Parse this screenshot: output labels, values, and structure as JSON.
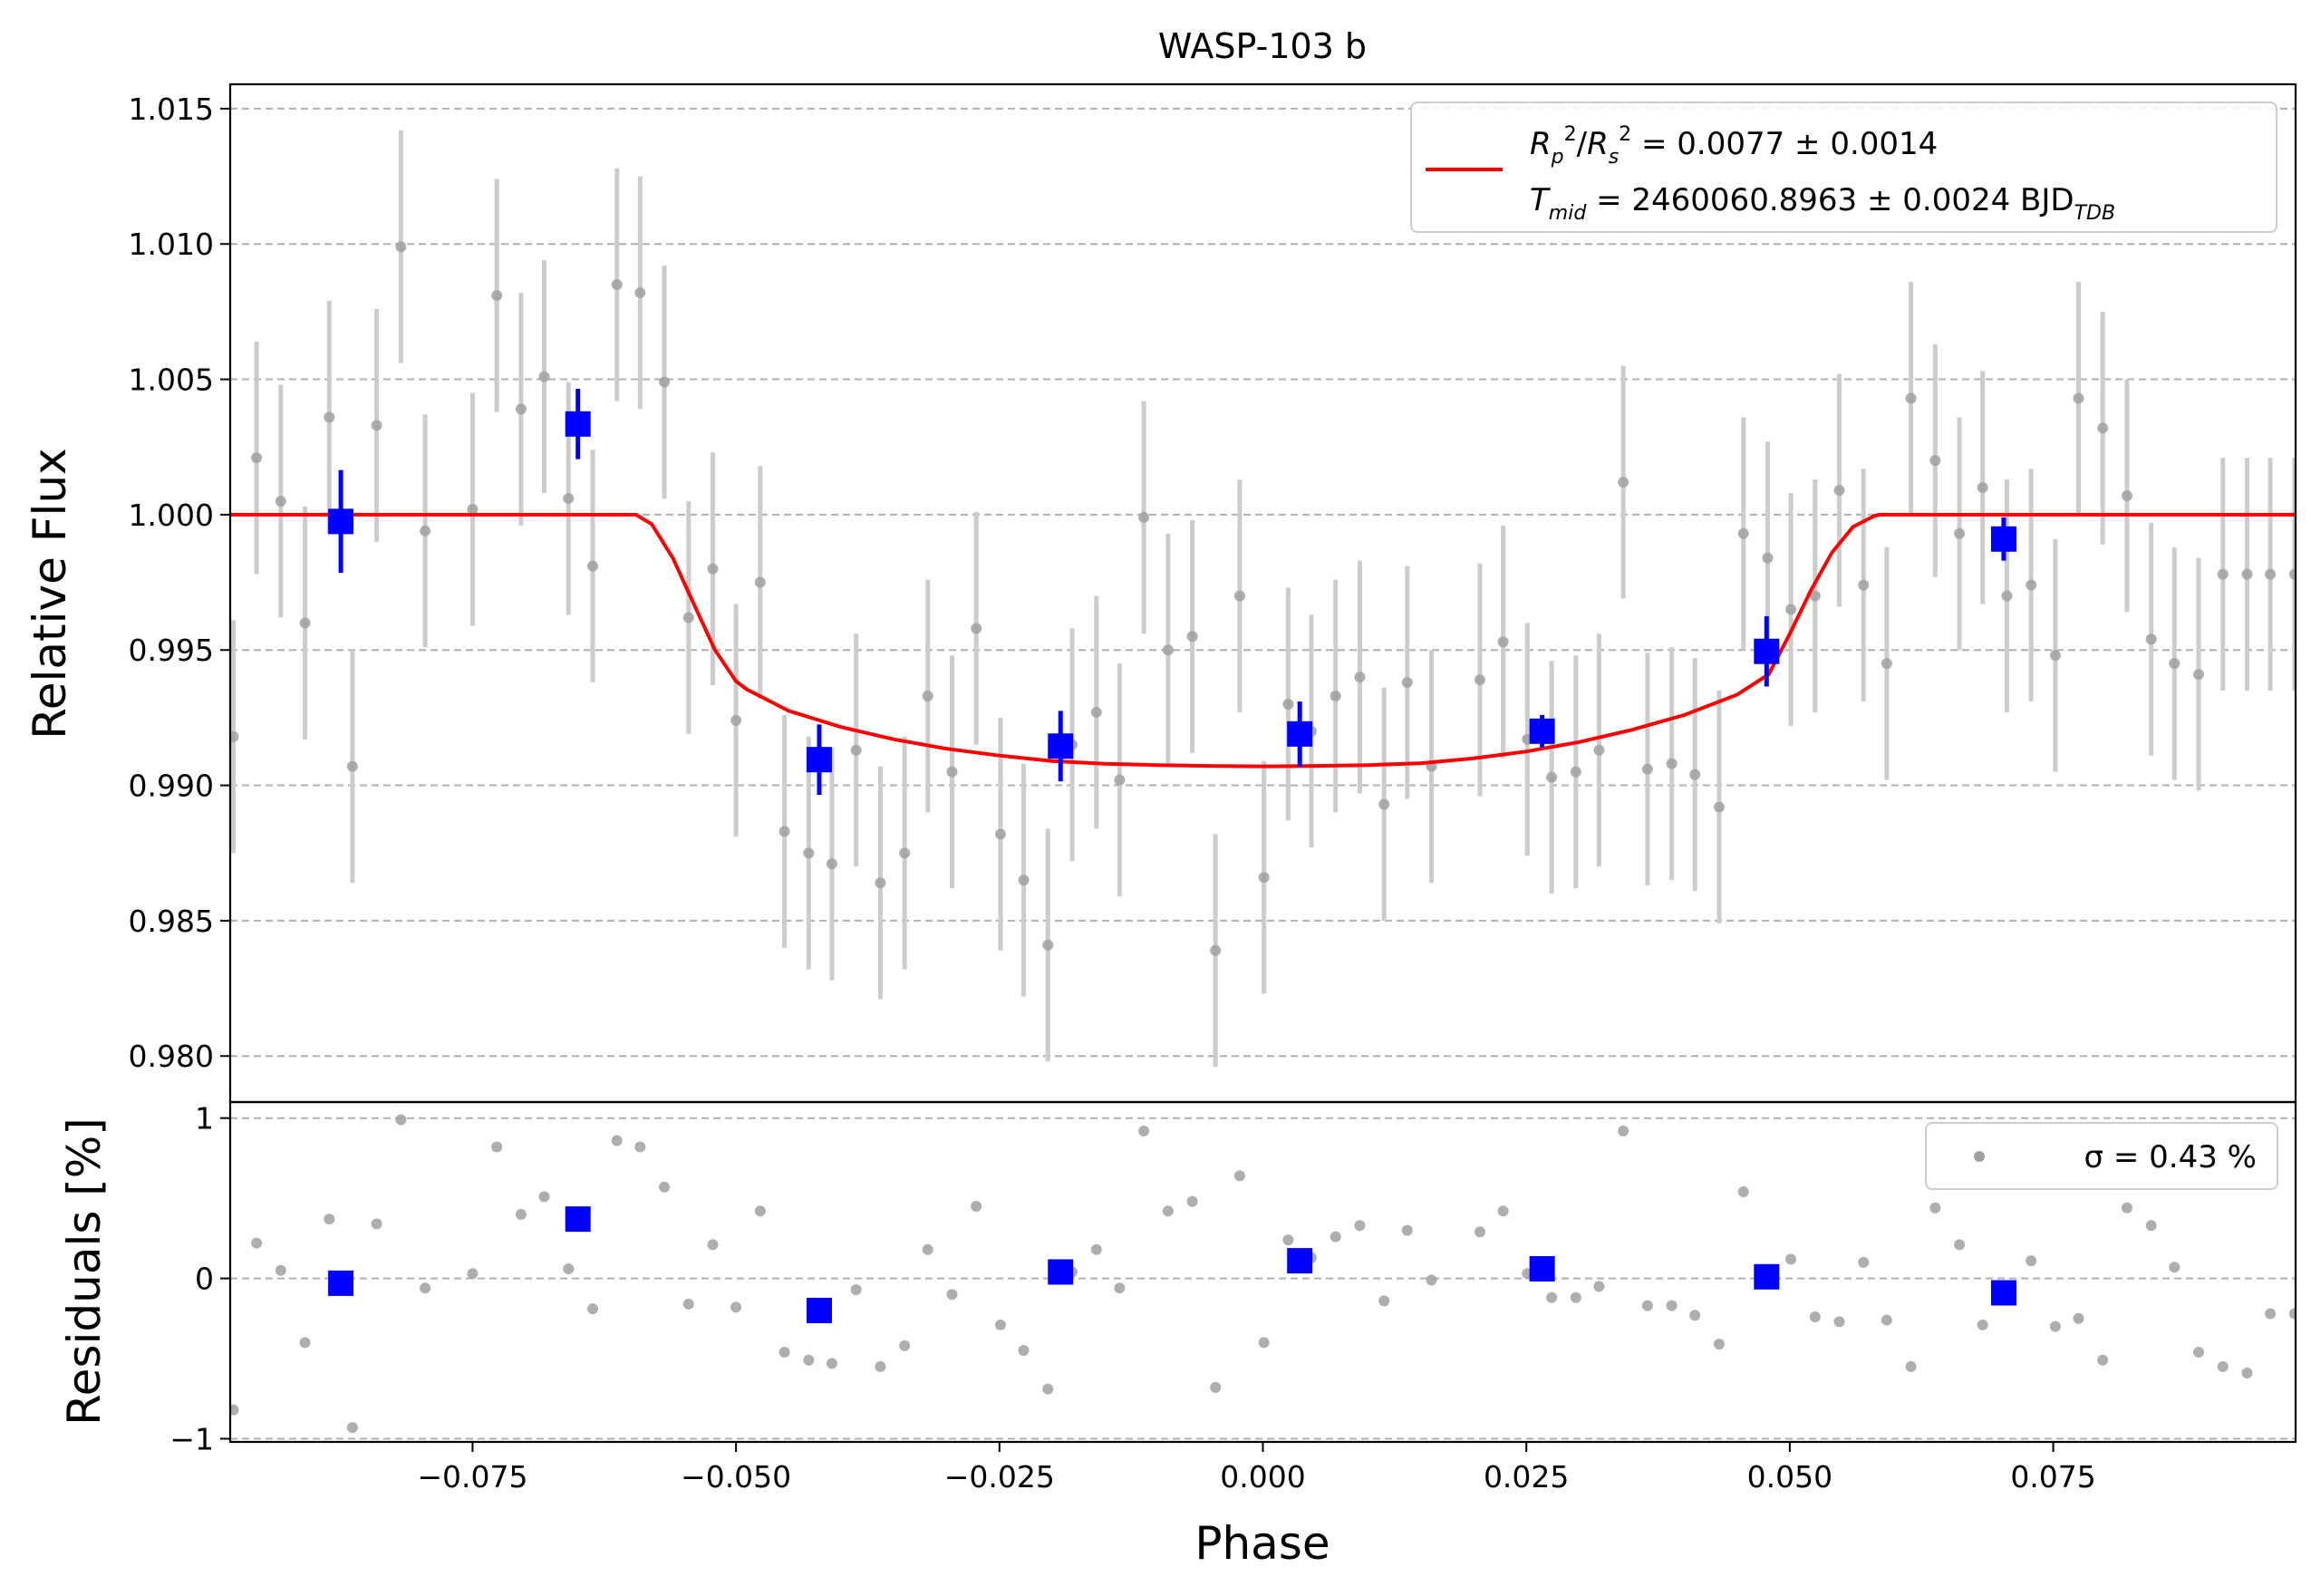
{
  "chart_data": [
    {
      "type": "scatter",
      "title": "WASP-103 b",
      "ylabel": "Relative Flux",
      "xlim": [
        -0.098,
        0.098
      ],
      "ylim": [
        0.9783,
        1.0159
      ],
      "yticks": [
        0.98,
        0.985,
        0.99,
        0.995,
        1.0,
        1.005,
        1.01,
        1.015
      ],
      "ytick_labels": [
        "0.980",
        "0.985",
        "0.990",
        "0.995",
        "1.000",
        "1.005",
        "1.010",
        "1.015"
      ],
      "grid": "y, dashed",
      "legend": {
        "placement": "upper-right",
        "line1": "R_p^2/R_s^2 = 0.0077 ± 0.0014",
        "line2": "T_mid = 2460060.8963 ± 0.0024 BJD_TDB"
      },
      "colors": {
        "raw": "#a0a0a0",
        "raw_err": "#cccccc",
        "binned": "#0000ff",
        "model": "#ff0000"
      },
      "model": {
        "name": "transit model",
        "x": [
          -0.098,
          -0.0595,
          -0.058,
          -0.056,
          -0.054,
          -0.052,
          -0.05,
          -0.049,
          -0.045,
          -0.04,
          -0.035,
          -0.03,
          -0.025,
          -0.02,
          -0.015,
          -0.01,
          -0.005,
          0.0,
          0.005,
          0.01,
          0.015,
          0.02,
          0.025,
          0.03,
          0.035,
          0.04,
          0.045,
          0.048,
          0.05,
          0.052,
          0.054,
          0.056,
          0.058,
          0.0585,
          0.098
        ],
        "y": [
          1.0,
          1.0,
          0.99965,
          0.9984,
          0.9967,
          0.995,
          0.99385,
          0.99355,
          0.99275,
          0.99215,
          0.9917,
          0.99135,
          0.9911,
          0.9909,
          0.9908,
          0.99075,
          0.99072,
          0.9907,
          0.99072,
          0.99075,
          0.99082,
          0.991,
          0.99125,
          0.9916,
          0.99205,
          0.9926,
          0.99335,
          0.9941,
          0.9956,
          0.9972,
          0.9986,
          0.99955,
          0.99995,
          1.0,
          1.0
        ]
      },
      "raw_points": {
        "x": [
          -0.0977,
          -0.0955,
          -0.0932,
          -0.0909,
          -0.0886,
          -0.0864,
          -0.0841,
          -0.0818,
          -0.0795,
          -0.075,
          -0.0727,
          -0.0704,
          -0.0682,
          -0.0659,
          -0.0636,
          -0.0613,
          -0.0591,
          -0.0568,
          -0.0545,
          -0.0522,
          -0.05,
          -0.0477,
          -0.0454,
          -0.0431,
          -0.0409,
          -0.0386,
          -0.0363,
          -0.034,
          -0.0318,
          -0.0295,
          -0.0272,
          -0.0249,
          -0.0227,
          -0.0204,
          -0.0181,
          -0.0158,
          -0.0136,
          -0.0113,
          -0.009,
          -0.0067,
          -0.0045,
          -0.0022,
          0.0001,
          0.0024,
          0.0046,
          0.0069,
          0.0092,
          0.0115,
          0.0137,
          0.016,
          0.0206,
          0.0228,
          0.0251,
          0.0274,
          0.0297,
          0.0319,
          0.0342,
          0.0365,
          0.0388,
          0.041,
          0.0433,
          0.0456,
          0.0479,
          0.0501,
          0.0524,
          0.0547,
          0.057,
          0.0592,
          0.0615,
          0.0638,
          0.0661,
          0.0683,
          0.0706,
          0.0729,
          0.0752,
          0.0774,
          0.0797,
          0.082,
          0.0843,
          0.0865,
          0.0888,
          0.0911,
          0.0934,
          0.0956,
          0.0979
        ],
        "y": [
          0.9918,
          1.0021,
          1.0005,
          0.996,
          1.0036,
          0.9907,
          1.0033,
          1.0099,
          0.9994,
          1.0002,
          1.0081,
          1.0039,
          1.0051,
          1.0006,
          0.9981,
          1.0085,
          1.0082,
          1.0049,
          0.9962,
          0.998,
          0.9924,
          0.9975,
          0.9883,
          0.9875,
          0.9871,
          0.9913,
          0.9864,
          0.9875,
          0.9933,
          0.9905,
          0.9958,
          0.9882,
          0.9865,
          0.9841,
          0.9915,
          0.9927,
          0.9902,
          0.9999,
          0.995,
          0.9955,
          0.9839,
          0.997,
          0.9866,
          0.993,
          0.992,
          0.9933,
          0.994,
          0.9893,
          0.9938,
          0.9907,
          0.9939,
          0.9953,
          0.9917,
          0.9903,
          0.9905,
          0.9913,
          1.0012,
          0.9906,
          0.9908,
          0.9904,
          0.9892,
          0.9993,
          0.9984,
          0.9965,
          0.997,
          1.0009,
          0.9974,
          0.9945,
          1.0043,
          1.002,
          0.9993,
          1.001,
          0.997,
          0.9974,
          0.9948,
          1.0043,
          1.0032,
          1.0007,
          0.9954,
          0.9945,
          0.9941,
          0.9978,
          0.9978,
          0.9978,
          0.9978
        ],
        "err": [
          0.0043,
          0.0043,
          0.0043,
          0.0043,
          0.0043,
          0.0043,
          0.0043,
          0.0043,
          0.0043,
          0.0043,
          0.0043,
          0.0043,
          0.0043,
          0.0043,
          0.0043,
          0.0043,
          0.0043,
          0.0043,
          0.0043,
          0.0043,
          0.0043,
          0.0043,
          0.0043,
          0.0043,
          0.0043,
          0.0043,
          0.0043,
          0.0043,
          0.0043,
          0.0043,
          0.0043,
          0.0043,
          0.0043,
          0.0043,
          0.0043,
          0.0043,
          0.0043,
          0.0043,
          0.0043,
          0.0043,
          0.0043,
          0.0043,
          0.0043,
          0.0043,
          0.0043,
          0.0043,
          0.0043,
          0.0043,
          0.0043,
          0.0043,
          0.0043,
          0.0043,
          0.0043,
          0.0043,
          0.0043,
          0.0043,
          0.0043,
          0.0043,
          0.0043,
          0.0043,
          0.0043,
          0.0043,
          0.0043,
          0.0043,
          0.0043,
          0.0043,
          0.0043,
          0.0043,
          0.0043,
          0.0043,
          0.0043,
          0.0043,
          0.0043,
          0.0043,
          0.0043,
          0.0043,
          0.0043,
          0.0043,
          0.0043,
          0.0043,
          0.0043,
          0.0043,
          0.0043,
          0.0043,
          0.0043
        ]
      },
      "binned_points": {
        "x": [
          -0.0875,
          -0.065,
          -0.0421,
          -0.0192,
          0.0035,
          0.0265,
          0.0478,
          0.0703
        ],
        "y": [
          0.99975,
          1.00335,
          0.99095,
          0.99145,
          0.9919,
          0.992,
          0.99495,
          0.9991
        ],
        "err": [
          0.0019,
          0.0013,
          0.0013,
          0.0013,
          0.0012,
          0.0006,
          0.0013,
          0.0008
        ]
      }
    },
    {
      "type": "scatter",
      "xlabel": "Phase",
      "ylabel": "Residuals [%]",
      "xlim": [
        -0.098,
        0.098
      ],
      "ylim": [
        -1.02,
        1.1
      ],
      "yticks": [
        -1,
        0,
        1
      ],
      "ytick_labels": [
        "−1",
        "0",
        "1"
      ],
      "xticks": [
        -0.075,
        -0.05,
        -0.025,
        0.0,
        0.025,
        0.05,
        0.075
      ],
      "xtick_labels": [
        "−0.075",
        "−0.050",
        "−0.025",
        "0.000",
        "0.025",
        "0.050",
        "0.075"
      ],
      "grid": "y, dashed",
      "legend": {
        "placement": "upper-right",
        "label": "σ = 0.43 %"
      },
      "raw_points": {
        "x": [
          -0.0977,
          -0.0955,
          -0.0932,
          -0.0909,
          -0.0886,
          -0.0864,
          -0.0841,
          -0.0818,
          -0.0795,
          -0.075,
          -0.0727,
          -0.0704,
          -0.0682,
          -0.0659,
          -0.0636,
          -0.0613,
          -0.0591,
          -0.0568,
          -0.0545,
          -0.0522,
          -0.05,
          -0.0477,
          -0.0454,
          -0.0431,
          -0.0409,
          -0.0386,
          -0.0363,
          -0.034,
          -0.0318,
          -0.0295,
          -0.0272,
          -0.0249,
          -0.0227,
          -0.0204,
          -0.0181,
          -0.0158,
          -0.0136,
          -0.0113,
          -0.009,
          -0.0067,
          -0.0045,
          -0.0022,
          0.0001,
          0.0024,
          0.0046,
          0.0069,
          0.0092,
          0.0115,
          0.0137,
          0.016,
          0.0206,
          0.0228,
          0.0251,
          0.0274,
          0.0297,
          0.0319,
          0.0342,
          0.0365,
          0.0388,
          0.041,
          0.0433,
          0.0456,
          0.0479,
          0.0501,
          0.0524,
          0.0547,
          0.057,
          0.0592,
          0.0615,
          0.0638,
          0.0661,
          0.0683,
          0.0706,
          0.0729,
          0.0752,
          0.0774,
          0.0797,
          0.082,
          0.0843,
          0.0865,
          0.0888,
          0.0911,
          0.0934,
          0.0956,
          0.0979
        ],
        "y": [
          -0.82,
          0.22,
          0.05,
          -0.4,
          0.37,
          -0.93,
          0.34,
          0.99,
          -0.06,
          0.03,
          0.82,
          0.4,
          0.51,
          0.06,
          -0.19,
          0.86,
          0.82,
          0.57,
          -0.16,
          0.21,
          -0.18,
          0.42,
          -0.46,
          -0.51,
          -0.53,
          -0.07,
          -0.55,
          -0.42,
          0.18,
          -0.1,
          0.45,
          -0.29,
          -0.45,
          -0.69,
          0.04,
          0.18,
          -0.06,
          0.92,
          0.42,
          0.48,
          -0.68,
          0.64,
          -0.4,
          0.24,
          0.13,
          0.26,
          0.33,
          -0.14,
          0.3,
          -0.01,
          0.29,
          0.42,
          0.03,
          -0.12,
          -0.12,
          -0.05,
          0.92,
          -0.17,
          -0.17,
          -0.23,
          -0.41,
          0.54,
          0.02,
          0.12,
          -0.24,
          -0.27,
          0.1,
          -0.26,
          -0.55,
          0.44,
          0.21,
          -0.29,
          -0.07,
          0.11,
          -0.3,
          -0.25,
          -0.51,
          0.44,
          0.33,
          0.07,
          -0.46,
          -0.55,
          -0.59,
          -0.22,
          -0.22
        ]
      },
      "binned_points": {
        "x": [
          -0.0875,
          -0.065,
          -0.0421,
          -0.0192,
          0.0035,
          0.0265,
          0.0478,
          0.0703
        ],
        "y": [
          -0.03,
          0.37,
          -0.2,
          0.04,
          0.11,
          0.06,
          0.01,
          -0.09
        ]
      }
    }
  ]
}
